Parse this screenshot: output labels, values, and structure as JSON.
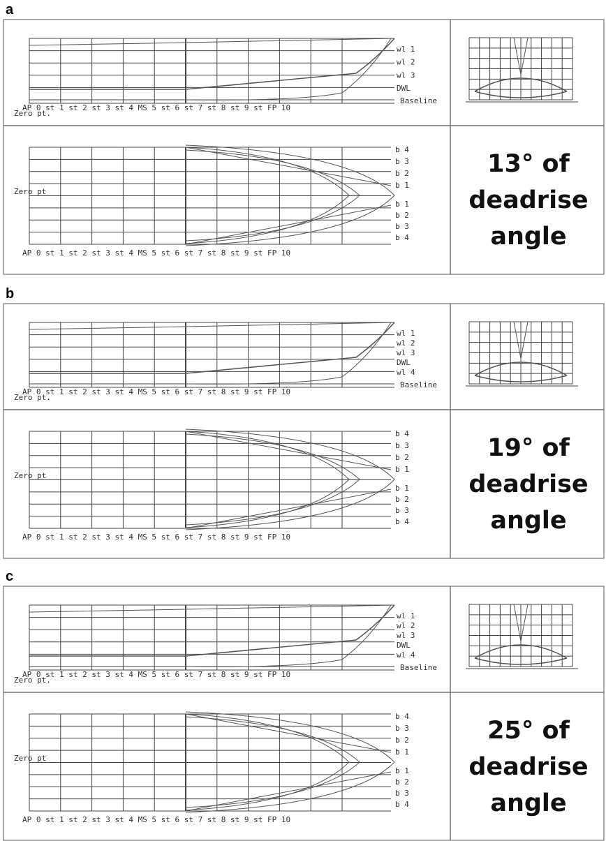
{
  "panels": [
    {
      "label": "a",
      "stations": "AP 0 st 1 st 2 st 3 st 4 MS 5 st 6 st 7 st 8 st 9 st FP 10",
      "zero_profile": "Zero pt.",
      "waterlines": [
        "wl 1",
        "wl 2",
        "wl 3",
        "DWL"
      ],
      "baseline": "Baseline",
      "buttocks": [
        "b 4",
        "b 3",
        "b 2",
        "b 1",
        "b 1",
        "b 2",
        "b 3",
        "b 4"
      ],
      "zero_plan": "Zero pt",
      "caption": [
        "13° of",
        "deadrise",
        "angle"
      ]
    },
    {
      "label": "b",
      "stations": "AP 0 st 1 st 2 st 3 st 4 MS 5 st 6 st 7 st 8 st 9 st FP 10",
      "zero_profile": "Zero pt.",
      "waterlines": [
        "wl 1",
        "wl 2",
        "wl 3",
        "DWL",
        "wl 4"
      ],
      "baseline": "Baseline",
      "buttocks": [
        "b 4",
        "b 3",
        "b 2",
        "b 1",
        "b 1",
        "b 2",
        "b 3",
        "b 4"
      ],
      "zero_plan": "Zero pt",
      "caption": [
        "19° of",
        "deadrise",
        "angle"
      ]
    },
    {
      "label": "c",
      "stations": "AP 0 st 1 st 2 st 3 st 4 MS 5 st 6 st 7 st 8 st 9 st FP 10",
      "zero_profile": "Zero pt.",
      "waterlines": [
        "wl 1",
        "wl 2",
        "wl 3",
        "DWL",
        "wl 4"
      ],
      "baseline": "Baseline",
      "buttocks": [
        "b 4",
        "b 3",
        "b 2",
        "b 1",
        "b 1",
        "b 2",
        "b 3",
        "b 4"
      ],
      "zero_plan": "Zero pt",
      "caption": [
        "25° of",
        "deadrise",
        "angle"
      ]
    }
  ]
}
